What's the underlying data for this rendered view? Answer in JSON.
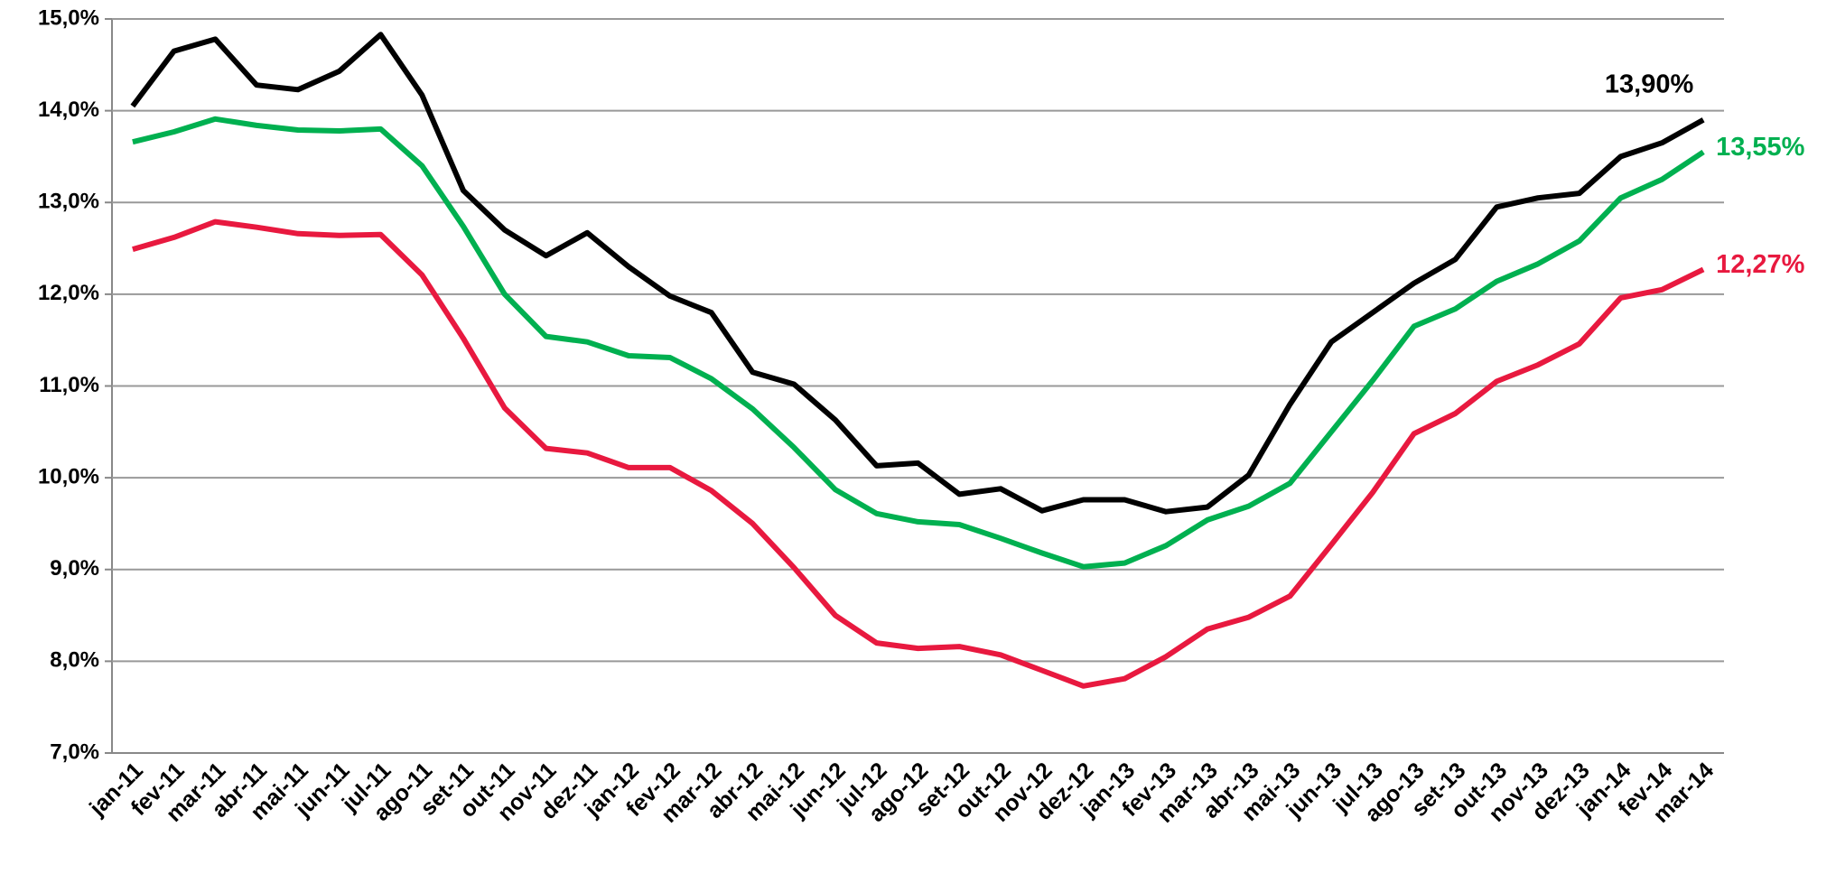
{
  "chart_data": {
    "type": "line",
    "categories": [
      "jan-11",
      "fev-11",
      "mar-11",
      "abr-11",
      "mai-11",
      "jun-11",
      "jul-11",
      "ago-11",
      "set-11",
      "out-11",
      "nov-11",
      "dez-11",
      "jan-12",
      "fev-12",
      "mar-12",
      "abr-12",
      "mai-12",
      "jun-12",
      "jul-12",
      "ago-12",
      "set-12",
      "out-12",
      "nov-12",
      "dez-12",
      "jan-13",
      "fev-13",
      "mar-13",
      "abr-13",
      "mai-13",
      "jun-13",
      "jul-13",
      "ago-13",
      "set-13",
      "out-13",
      "nov-13",
      "dez-13",
      "jan-14",
      "fev-14",
      "mar-14"
    ],
    "series": [
      {
        "color": "#000000",
        "values": [
          14.05,
          14.65,
          14.78,
          14.28,
          14.23,
          14.43,
          14.83,
          14.17,
          13.13,
          12.7,
          12.42,
          12.67,
          12.3,
          11.98,
          11.8,
          11.15,
          11.02,
          10.63,
          10.13,
          10.16,
          9.82,
          9.88,
          9.64,
          9.76,
          9.76,
          9.63,
          9.68,
          10.03,
          10.8,
          11.48,
          11.8,
          12.12,
          12.38,
          12.95,
          13.05,
          13.1,
          13.5,
          13.65,
          13.9
        ],
        "value_labels": [
          null,
          null,
          null,
          null,
          null,
          null,
          null,
          null,
          null,
          null,
          null,
          null,
          null,
          null,
          null,
          null,
          null,
          null,
          null,
          null,
          null,
          null,
          null,
          null,
          null,
          null,
          null,
          null,
          null,
          null,
          null,
          null,
          null,
          null,
          null,
          null,
          null,
          null,
          "13,90%"
        ]
      },
      {
        "color": "#00b050",
        "values": [
          13.66,
          13.77,
          13.91,
          13.84,
          13.79,
          13.78,
          13.8,
          13.4,
          12.74,
          12.0,
          11.54,
          11.48,
          11.33,
          11.31,
          11.08,
          10.75,
          10.33,
          9.87,
          9.61,
          9.52,
          9.49,
          9.34,
          9.18,
          9.03,
          9.07,
          9.26,
          9.54,
          9.69,
          9.94,
          10.5,
          11.06,
          11.65,
          11.84,
          12.14,
          12.33,
          12.58,
          13.05,
          13.25,
          13.55
        ],
        "value_labels": [
          null,
          null,
          null,
          null,
          null,
          null,
          null,
          null,
          null,
          null,
          null,
          null,
          null,
          null,
          null,
          null,
          null,
          null,
          null,
          null,
          null,
          null,
          null,
          null,
          null,
          null,
          null,
          null,
          null,
          null,
          null,
          null,
          null,
          null,
          null,
          null,
          null,
          null,
          "13,55%"
        ]
      },
      {
        "color": "#e8193f",
        "values": [
          12.49,
          12.62,
          12.79,
          12.73,
          12.66,
          12.64,
          12.65,
          12.21,
          11.52,
          10.76,
          10.32,
          10.27,
          10.11,
          10.11,
          9.86,
          9.5,
          9.02,
          8.5,
          8.2,
          8.14,
          8.16,
          8.07,
          7.9,
          7.73,
          7.81,
          8.05,
          8.35,
          8.48,
          8.71,
          9.27,
          9.84,
          10.48,
          10.7,
          11.05,
          11.23,
          11.46,
          11.96,
          12.05,
          12.27
        ],
        "value_labels": [
          null,
          null,
          null,
          null,
          null,
          null,
          null,
          null,
          null,
          null,
          null,
          null,
          null,
          null,
          null,
          null,
          null,
          null,
          null,
          null,
          null,
          null,
          null,
          null,
          null,
          null,
          null,
          null,
          null,
          null,
          null,
          null,
          null,
          null,
          null,
          null,
          null,
          null,
          "12,27%"
        ]
      }
    ],
    "ylim": [
      7,
      15
    ],
    "yticks": [
      {
        "value": 7,
        "label": "7,0%"
      },
      {
        "value": 8,
        "label": "8,0%"
      },
      {
        "value": 9,
        "label": "9,0%"
      },
      {
        "value": 10,
        "label": "10,0%"
      },
      {
        "value": 11,
        "label": "11,0%"
      },
      {
        "value": 12,
        "label": "12,0%"
      },
      {
        "value": 13,
        "label": "13,0%"
      },
      {
        "value": 14,
        "label": "14,0%"
      },
      {
        "value": 15,
        "label": "15,0%"
      }
    ],
    "grid": true
  }
}
